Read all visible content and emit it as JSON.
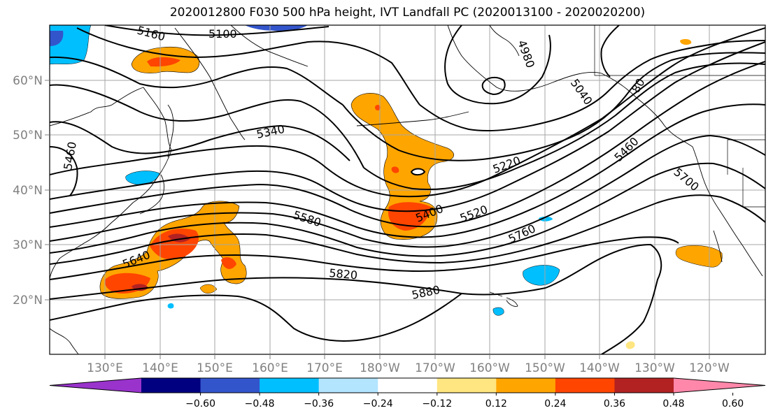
{
  "title": "2020012800 F030 500 hPa height, IVT Landfall PC (2020013100 - 2020020200)",
  "lon_ticks": [
    "130°E",
    "140°E",
    "150°E",
    "160°E",
    "170°E",
    "180°W",
    "170°W",
    "160°W",
    "150°W",
    "140°W",
    "130°W",
    "120°W"
  ],
  "lat_ticks": [
    "20°N",
    "30°N",
    "40°N",
    "50°N",
    "60°N"
  ],
  "contour_labels": [
    "5160",
    "5100",
    "4980",
    "5040",
    "80",
    "5460",
    "5340",
    "5220",
    "5460",
    "5700",
    "5400",
    "5520",
    "5580",
    "5760",
    "5640",
    "5820",
    "5880"
  ],
  "colorbar": {
    "colors": [
      "#9933cc",
      "#000080",
      "#3355cc",
      "#00bfff",
      "#b3e5ff",
      "#ffffff",
      "#ffe680",
      "#ffa500",
      "#ff4500",
      "#b22222",
      "#ff88aa"
    ],
    "labels": [
      "−0.60",
      "−0.48",
      "−0.36",
      "−0.24",
      "−0.12",
      "0.12",
      "0.24",
      "0.36",
      "0.48",
      "0.60"
    ]
  }
}
